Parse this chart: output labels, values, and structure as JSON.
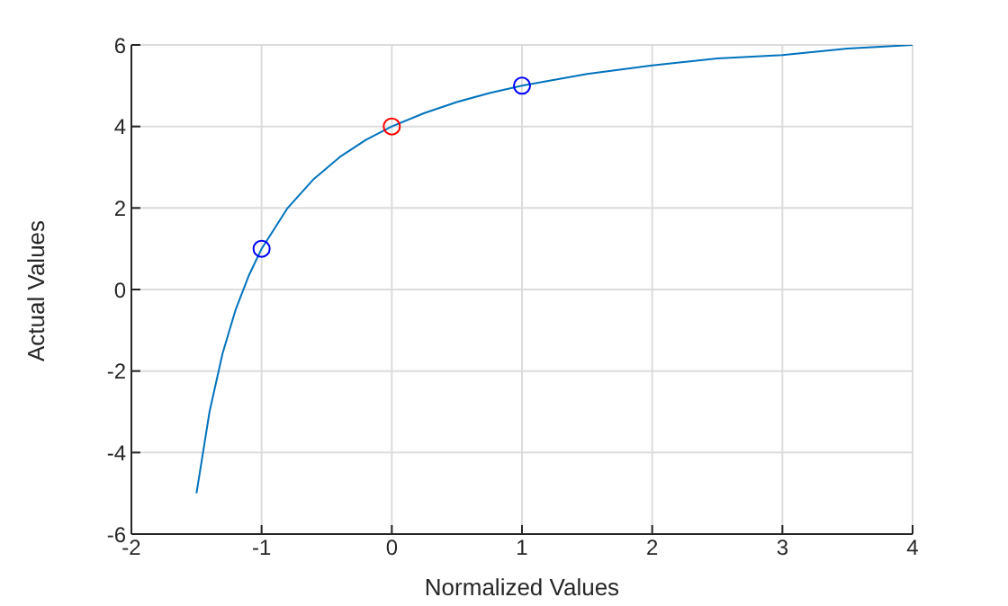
{
  "chart_data": {
    "type": "line",
    "xlabel": "Normalized Values",
    "ylabel": "Actual Values",
    "xlim": [
      -2,
      4
    ],
    "xticks": [
      -2,
      -1,
      0,
      1,
      2,
      3,
      4
    ],
    "ylim": [
      -6,
      6
    ],
    "yticks": [
      -6,
      -4,
      -2,
      0,
      2,
      4,
      6
    ],
    "grid": true,
    "series": [
      {
        "color": "#0072bd",
        "marker": "none",
        "x": [
          -1.5,
          -1.4,
          -1.3,
          -1.2,
          -1.1,
          -1,
          -0.8,
          -0.6,
          -0.4,
          -0.2,
          0,
          0.25,
          0.5,
          0.75,
          1,
          1.5,
          2,
          2.5,
          3,
          3.5,
          4
        ],
        "values": [
          -5,
          -3,
          -1.57,
          -0.5,
          0.33,
          1,
          2,
          2.71,
          3.25,
          3.67,
          4,
          4.33,
          4.6,
          4.82,
          5,
          5.29,
          5.5,
          5.67,
          5.75,
          5.91,
          6
        ]
      },
      {
        "type": "scatter",
        "marker": "circle",
        "color": "#0000ff",
        "x": [
          -1,
          1
        ],
        "values": [
          1,
          5
        ]
      },
      {
        "type": "scatter",
        "marker": "circle",
        "color": "#ff0000",
        "x": [
          0
        ],
        "values": [
          4
        ]
      }
    ]
  }
}
